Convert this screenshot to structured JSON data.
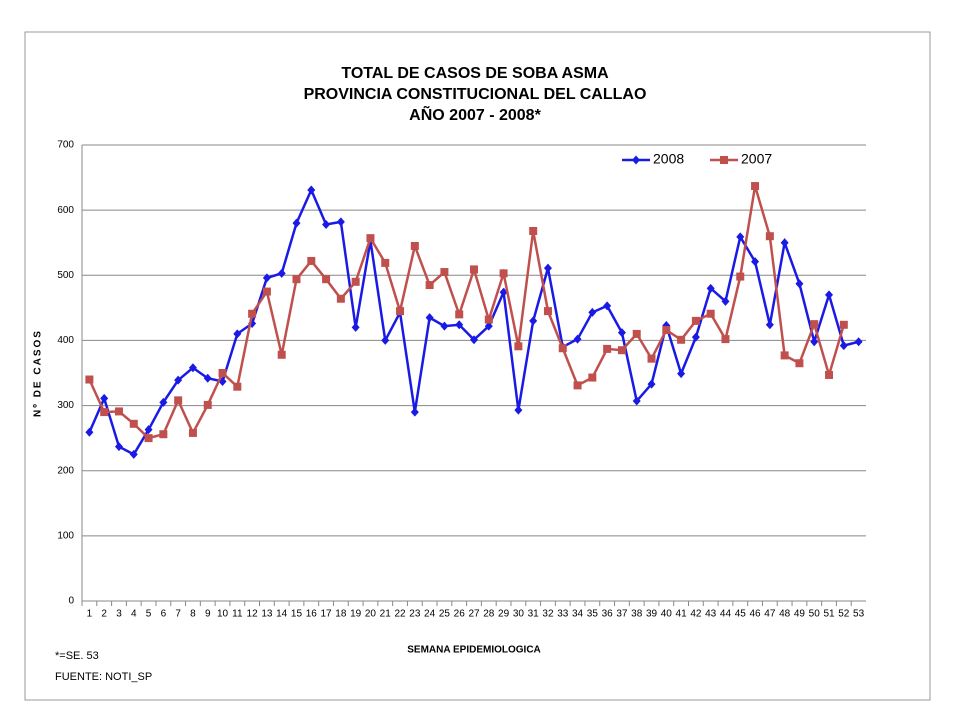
{
  "chart_data": {
    "type": "line",
    "title": [
      "TOTAL DE CASOS DE SOBA ASMA",
      "PROVINCIA CONSTITUCIONAL DEL CALLAO",
      "AÑO 2007 - 2008*"
    ],
    "x_label": "SEMANA EPIDEMIOLOGICA",
    "y_label": "Nº DE CASOS",
    "notes": [
      "*=SE. 53",
      "FUENTE: NOTI_SP"
    ],
    "categories": [
      "1",
      "2",
      "3",
      "4",
      "5",
      "6",
      "7",
      "8",
      "9",
      "10",
      "11",
      "12",
      "13",
      "14",
      "15",
      "16",
      "17",
      "18",
      "19",
      "20",
      "21",
      "22",
      "23",
      "24",
      "25",
      "26",
      "27",
      "28",
      "29",
      "30",
      "31",
      "32",
      "33",
      "34",
      "35",
      "36",
      "37",
      "38",
      "39",
      "40",
      "41",
      "42",
      "43",
      "44",
      "45",
      "46",
      "47",
      "48",
      "49",
      "50",
      "51",
      "52",
      "53"
    ],
    "series": [
      {
        "name": "2008",
        "color": "#1a1ae6",
        "marker": "diamond",
        "values": [
          259,
          311,
          237,
          225,
          263,
          305,
          339,
          358,
          342,
          337,
          410,
          426,
          496,
          503,
          580,
          631,
          578,
          582,
          420,
          553,
          400,
          443,
          290,
          435,
          422,
          424,
          401,
          422,
          474,
          293,
          430,
          511,
          390,
          402,
          443,
          453,
          412,
          307,
          333,
          423,
          349,
          405,
          480,
          460,
          559,
          521,
          424,
          550,
          487,
          398,
          470,
          392,
          398
        ]
      },
      {
        "name": "2007",
        "color": "#c0504d",
        "marker": "square",
        "values": [
          340,
          290,
          291,
          272,
          250,
          256,
          308,
          258,
          301,
          350,
          329,
          441,
          475,
          378,
          494,
          522,
          494,
          464,
          490,
          557,
          519,
          445,
          545,
          485,
          505,
          440,
          509,
          432,
          503,
          391,
          568,
          445,
          388,
          331,
          343,
          387,
          385,
          410,
          372,
          416,
          401,
          430,
          441,
          402,
          498,
          637,
          560,
          377,
          365,
          425,
          347,
          424,
          null
        ]
      }
    ],
    "ylim": [
      0,
      700
    ],
    "yticks": [
      0,
      100,
      200,
      300,
      400,
      500,
      600,
      700
    ],
    "grid": true,
    "legend": "top-right"
  }
}
